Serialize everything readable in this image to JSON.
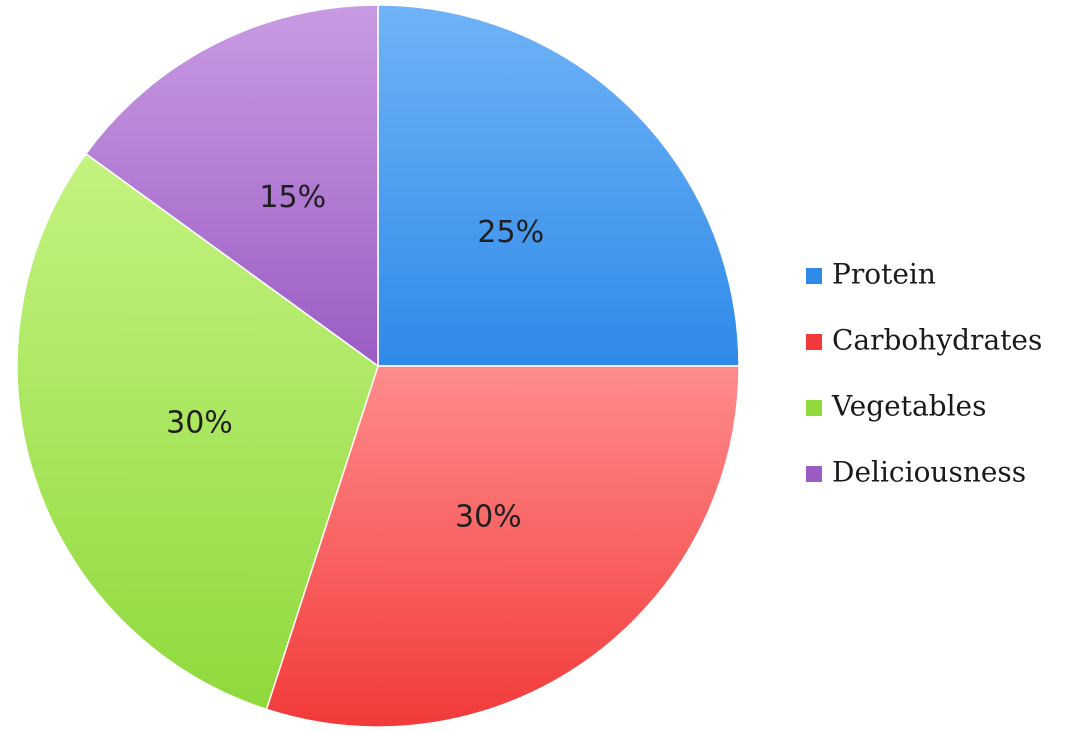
{
  "chart_data": {
    "type": "pie",
    "start_angle_deg": 0,
    "direction": "clockwise",
    "legend": "right",
    "slices": [
      {
        "name": "Protein",
        "value": 25,
        "label": "25%",
        "color": "#2f8ae8",
        "color_light": "#6fb3f7"
      },
      {
        "name": "Carbohydrates",
        "value": 30,
        "label": "30%",
        "color": "#f23a3a",
        "color_light": "#ff8c8c"
      },
      {
        "name": "Vegetables",
        "value": 30,
        "label": "30%",
        "color": "#8fd93c",
        "color_light": "#c4f380"
      },
      {
        "name": "Deliciousness",
        "value": 15,
        "label": "15%",
        "color": "#9b5cc4",
        "color_light": "#c99be3"
      }
    ]
  }
}
